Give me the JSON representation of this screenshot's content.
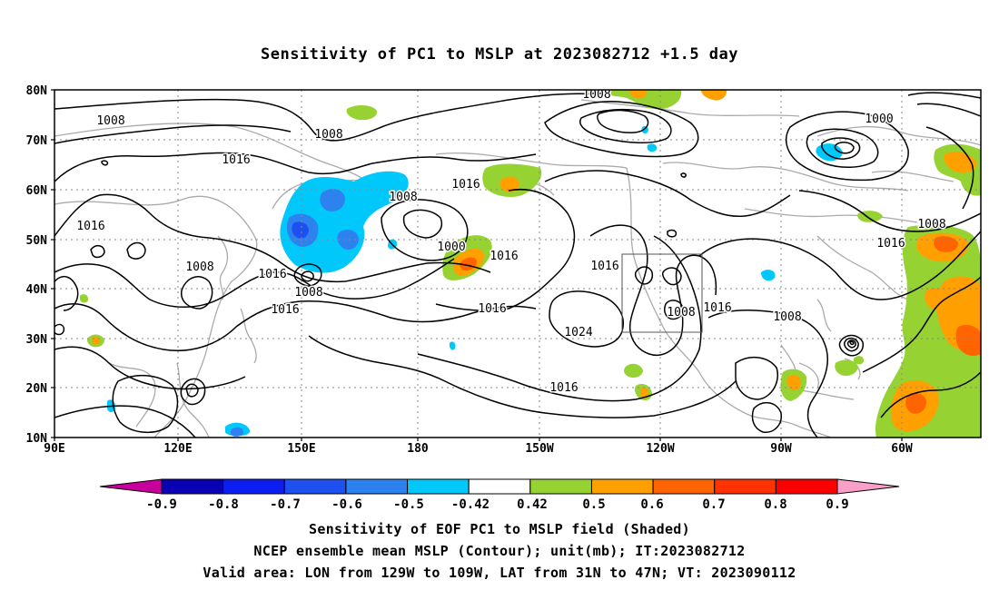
{
  "title": "Sensitivity of PC1 to MSLP at 2023082712 +1.5 day",
  "axes": {
    "lat_labels": [
      "80N",
      "70N",
      "60N",
      "50N",
      "40N",
      "30N",
      "20N",
      "10N"
    ],
    "lon_labels": [
      "90E",
      "120E",
      "150E",
      "180",
      "150W",
      "120W",
      "90W",
      "60W"
    ]
  },
  "contour_labels": {
    "c1": "1008",
    "c2": "1008",
    "c3": "1016",
    "c4": "1016",
    "c5": "1008",
    "c6": "1016",
    "c7": "1008",
    "c8": "1000",
    "c9": "1016",
    "c10": "1008",
    "c11": "1016",
    "c12": "1016",
    "c13": "1016",
    "c14": "1024",
    "c15": "1008",
    "c16": "1016",
    "c17": "1008",
    "c18": "1000",
    "c19": "1008",
    "c20": "1016",
    "c21": "1016",
    "c22": "1016"
  },
  "colorbar": {
    "labels": [
      "-0.9",
      "-0.8",
      "-0.7",
      "-0.6",
      "-0.5",
      "-0.42",
      "0.42",
      "0.5",
      "0.6",
      "0.7",
      "0.8",
      "0.9"
    ],
    "colors": [
      "#0a00b4",
      "#0d1ef0",
      "#1e50f0",
      "#2d82f0",
      "#00c8fa",
      "#ffffff",
      "#96d232",
      "#ffa000",
      "#ff6400",
      "#ff3200",
      "#fa0000"
    ],
    "low_end_color": "#c8009b",
    "high_end_color": "#faa0c8"
  },
  "captions": {
    "line1": "Sensitivity of EOF PC1 to MSLP field (Shaded)",
    "line2": "NCEP ensemble mean MSLP (Contour); unit(mb); IT:2023082712",
    "line3": "Valid area: LON from 129W to 109W, LAT from 31N to 47N; VT: 2023090112"
  }
}
